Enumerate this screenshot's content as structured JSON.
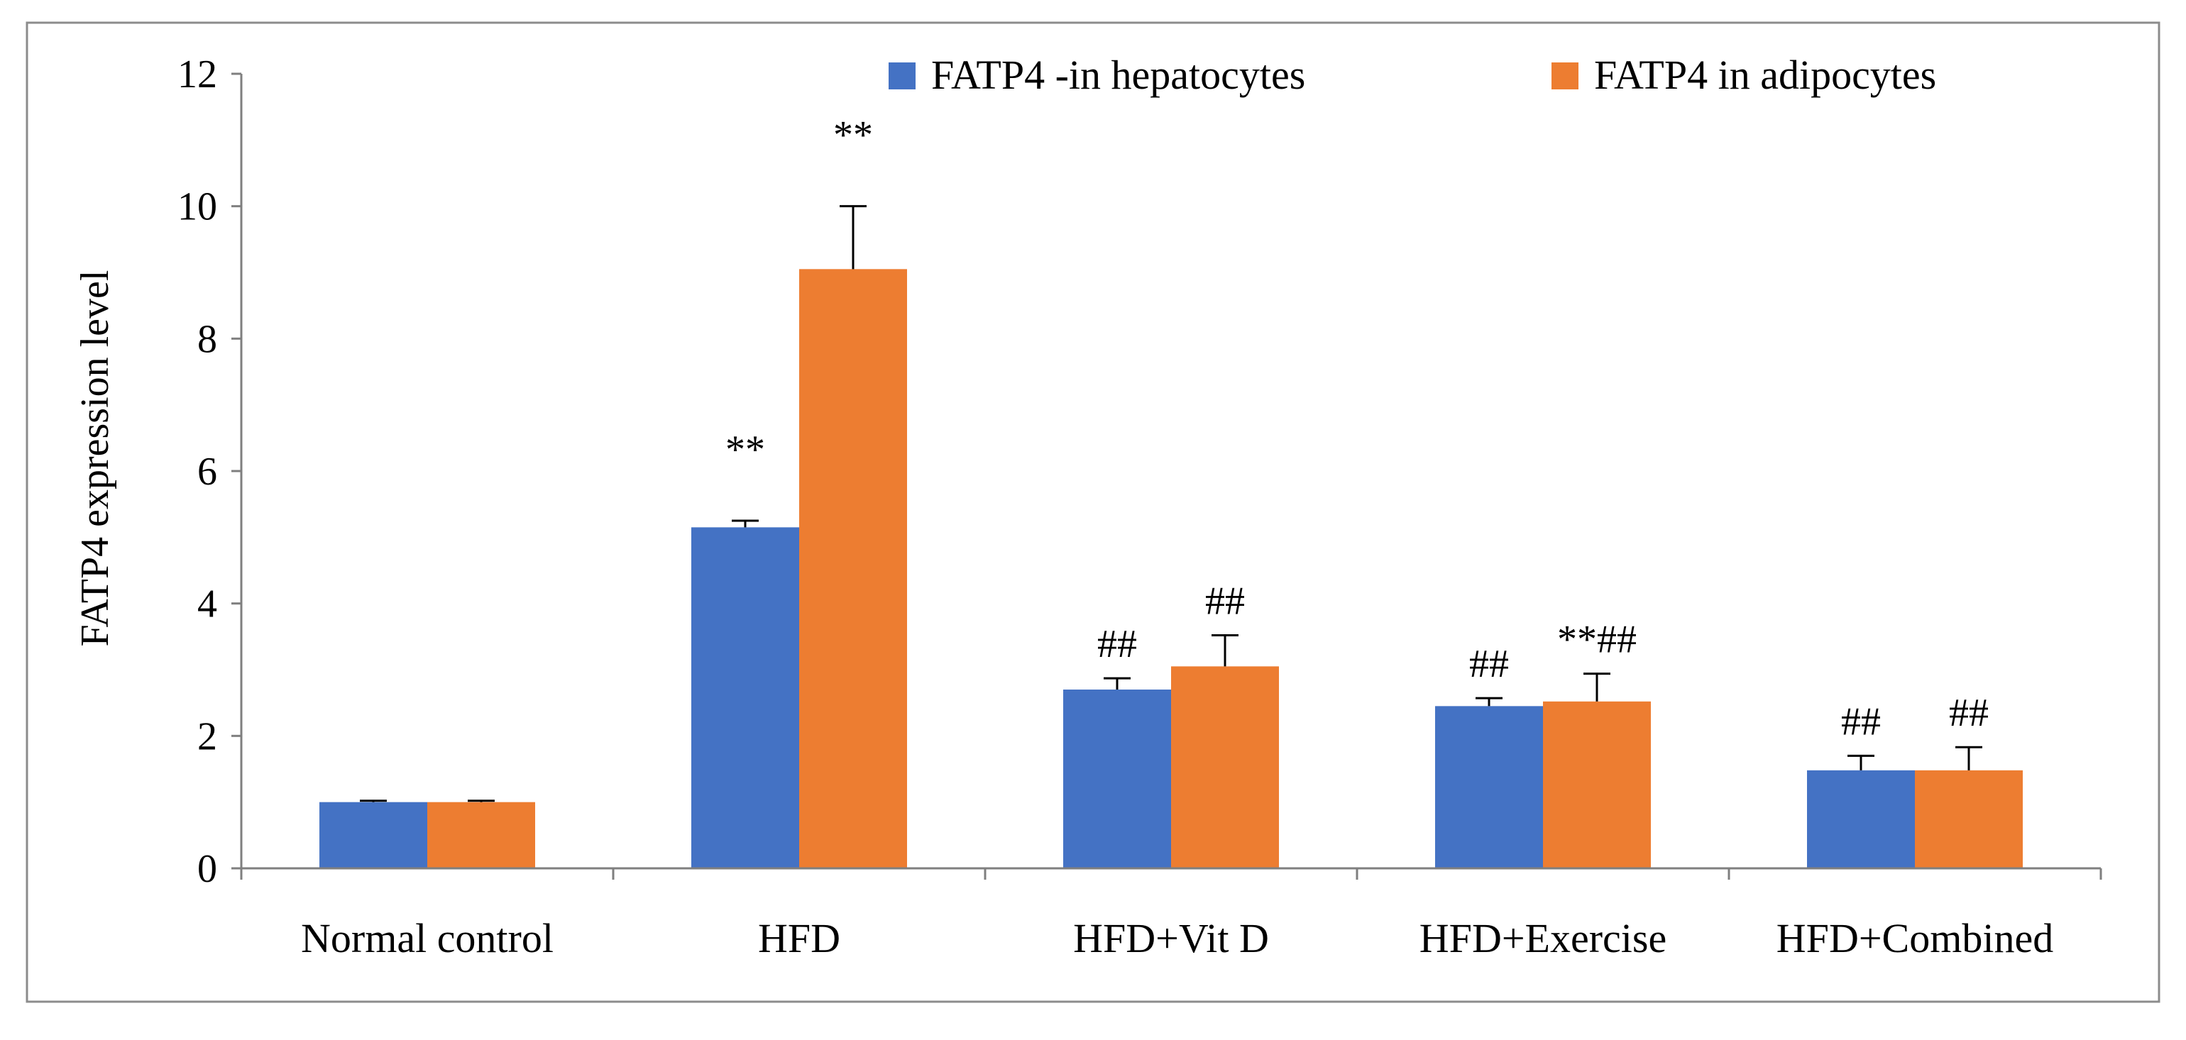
{
  "chart_data": {
    "type": "bar",
    "title": "",
    "xlabel": "",
    "ylabel": "FATP4 expression level",
    "ylim": [
      0,
      12
    ],
    "yticks": [
      0,
      2,
      4,
      6,
      8,
      10,
      12
    ],
    "grid": false,
    "legend_position": "top-right",
    "categories": [
      "Normal control",
      "HFD",
      "HFD+Vit D",
      "HFD+Exercise",
      "HFD+Combined"
    ],
    "series": [
      {
        "name": "FATP4 -in hepatocytes",
        "color": "#4472C4",
        "values": [
          1.0,
          5.15,
          2.7,
          2.45,
          1.48
        ],
        "errors": [
          0.02,
          0.1,
          0.17,
          0.12,
          0.22
        ],
        "annotations": [
          "",
          "**",
          "##",
          "##",
          "##"
        ]
      },
      {
        "name": "FATP4 in adipocytes",
        "color": "#ED7D31",
        "values": [
          1.0,
          9.05,
          3.05,
          2.52,
          1.48
        ],
        "errors": [
          0.02,
          0.95,
          0.47,
          0.42,
          0.35
        ],
        "annotations": [
          "",
          "**",
          "##",
          "**##",
          "##"
        ]
      }
    ]
  }
}
